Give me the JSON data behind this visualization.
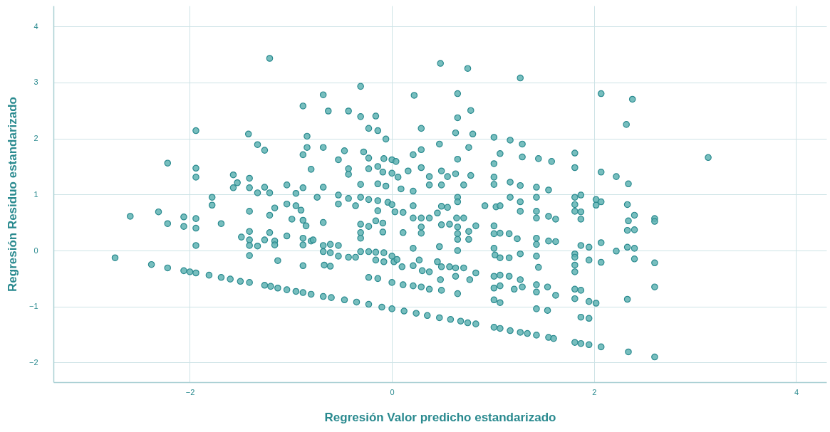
{
  "chart_data": {
    "type": "scatter",
    "xlabel": "Regresión Valor predicho estandarizado",
    "ylabel": "Regresión Residuo estandarizado",
    "color": "#5fb3b3",
    "marker": "circle",
    "grid": true,
    "xlim": [
      -3.35,
      4.3
    ],
    "ylim": [
      -2.35,
      4.37
    ],
    "xticks": [
      -2,
      0,
      2,
      4
    ],
    "yticks": [
      -2,
      -1,
      0,
      1,
      2,
      3,
      4
    ],
    "x": [
      -1.21,
      -1.94,
      -1.42,
      -1.33,
      -1.26,
      -0.88,
      -0.84,
      -0.84,
      -0.88,
      -2.22,
      -1.94,
      -1.94,
      -1.57,
      -1.53,
      -1.41,
      -1.41,
      -1.57,
      -1.33,
      -1.26,
      -1.21,
      -1.04,
      -0.8,
      -0.95,
      -0.88,
      -1.78,
      -1.78,
      -2.59,
      -2.31,
      -2.22,
      -2.06,
      -2.06,
      -1.94,
      -1.94,
      -1.69,
      -1.41,
      -1.16,
      -1.21,
      -1.04,
      -0.95,
      -0.9,
      -0.99,
      -0.88,
      -0.85,
      -1.94,
      -1.49,
      -1.41,
      -1.41,
      -1.41,
      -1.33,
      -1.26,
      -1.21,
      -1.16,
      -1.16,
      -1.04,
      -0.88,
      -0.88,
      -0.8,
      -1.41,
      -1.13,
      -0.88,
      -2.74,
      0.48,
      0.75,
      1.27,
      -0.31,
      -0.68,
      0.22,
      0.65,
      -0.63,
      -0.43,
      -0.31,
      -0.16,
      0.65,
      0.78,
      -0.23,
      -0.14,
      0.29,
      -0.06,
      0.63,
      0.8,
      0.47,
      1.01,
      1.17,
      1.29,
      -0.68,
      -0.47,
      -0.28,
      -0.53,
      -0.23,
      -0.08,
      0.0,
      0.04,
      0.21,
      0.29,
      0.65,
      0.76,
      1.01,
      1.07,
      1.29,
      -0.43,
      -0.43,
      -0.23,
      -0.14,
      -0.09,
      0.0,
      0.06,
      -0.31,
      -0.14,
      -0.06,
      0.09,
      0.16,
      0.29,
      0.37,
      0.37,
      0.49,
      0.55,
      0.63,
      0.71,
      0.78,
      1.01,
      1.01,
      1.17,
      1.27,
      0.21,
      0.49,
      -0.68,
      -0.74,
      -0.53,
      -0.53,
      -0.43,
      -0.36,
      -0.31,
      -0.23,
      -0.14,
      -0.04,
      0.0,
      0.03,
      0.11,
      -0.14,
      -0.16,
      -0.09,
      -0.09,
      -0.68,
      -0.31,
      -0.23,
      -0.31,
      -0.31,
      0.11,
      0.21,
      0.21,
      0.29,
      0.29,
      0.29,
      0.37,
      0.45,
      0.49,
      0.55,
      0.57,
      0.64,
      0.65,
      0.65,
      0.65,
      0.71,
      0.76,
      0.76,
      0.83,
      0.92,
      1.03,
      1.07,
      1.01,
      1.01,
      1.07,
      1.16,
      1.24,
      1.27,
      1.27,
      1.17,
      0.65,
      0.65,
      0.49,
      -0.78,
      -0.68,
      -0.61,
      -0.53,
      -0.68,
      -0.61,
      -0.53,
      -0.43,
      -0.36,
      -0.31,
      -0.23,
      -0.16,
      -0.16,
      -0.08,
      -0.08,
      0.0,
      0.02,
      0.05,
      0.1,
      0.21,
      0.27,
      0.3,
      0.37,
      0.45,
      0.49,
      0.57,
      0.63,
      0.63,
      0.71,
      0.77,
      0.83,
      0.48,
      0.49,
      0.65,
      -0.67,
      -0.61,
      -0.23,
      -0.14,
      0.0,
      0.11,
      0.21,
      0.29,
      0.37,
      0.21,
      0.47,
      0.65,
      1.01,
      1.02,
      1.07,
      1.16,
      1.27,
      1.01,
      1.07,
      1.16,
      1.27,
      1.01,
      1.07,
      1.21,
      1.29,
      1.01,
      1.07,
      2.07,
      2.38,
      2.32,
      3.13,
      1.45,
      1.58,
      1.81,
      1.81,
      2.07,
      2.22,
      2.34,
      1.43,
      1.55,
      1.43,
      1.81,
      1.87,
      2.02,
      2.07,
      1.81,
      1.81,
      1.87,
      1.87,
      2.02,
      2.33,
      2.4,
      2.34,
      2.33,
      2.4,
      2.6,
      2.6,
      1.43,
      1.43,
      1.55,
      1.62,
      1.43,
      1.43,
      1.55,
      1.62,
      1.87,
      1.95,
      2.07,
      2.33,
      2.4,
      2.22,
      1.81,
      1.81,
      1.81,
      1.81,
      1.43,
      1.45,
      1.95,
      2.07,
      2.4,
      2.6,
      1.43,
      1.43,
      1.54,
      1.62,
      1.81,
      1.87,
      1.81,
      1.95,
      2.02,
      2.33,
      2.6,
      1.43,
      1.54,
      1.87,
      1.95,
      -2.38,
      -2.22,
      -2.06,
      -2.0,
      -1.94,
      -1.81,
      -1.69,
      -1.6,
      -1.5,
      -1.41,
      -1.26,
      -1.2,
      -1.13,
      -1.04,
      -0.95,
      -0.88,
      -0.8,
      -0.68,
      -0.6,
      -0.47,
      -0.35,
      -0.23,
      -0.1,
      0.0,
      0.12,
      0.24,
      0.35,
      0.47,
      0.58,
      0.68,
      0.75,
      0.83,
      1.01,
      1.07,
      1.17,
      1.27,
      1.34,
      1.43,
      1.55,
      1.6,
      1.81,
      1.87,
      1.95,
      2.07,
      2.34,
      2.6
    ],
    "values": [
      3.43,
      2.14,
      2.08,
      1.89,
      1.79,
      2.58,
      2.04,
      1.84,
      1.71,
      1.56,
      1.47,
      1.31,
      1.35,
      1.21,
      1.29,
      1.12,
      1.12,
      1.03,
      1.13,
      1.03,
      1.17,
      1.45,
      1.02,
      1.12,
      0.95,
      0.81,
      0.61,
      0.69,
      0.48,
      0.6,
      0.43,
      0.57,
      0.4,
      0.48,
      0.7,
      0.76,
      0.63,
      0.83,
      0.8,
      0.72,
      0.56,
      0.54,
      0.44,
      0.09,
      0.24,
      0.34,
      0.19,
      0.09,
      0.08,
      0.19,
      0.32,
      0.17,
      0.1,
      0.26,
      0.22,
      0.1,
      0.17,
      -0.09,
      -0.18,
      -0.27,
      -0.13,
      3.34,
      3.25,
      3.08,
      2.93,
      2.78,
      2.77,
      2.8,
      2.49,
      2.49,
      2.39,
      2.4,
      2.37,
      2.5,
      2.18,
      2.14,
      2.18,
      1.99,
      2.1,
      2.08,
      1.9,
      2.02,
      1.97,
      1.9,
      1.84,
      1.78,
      1.76,
      1.62,
      1.65,
      1.64,
      1.62,
      1.59,
      1.71,
      1.8,
      1.63,
      1.84,
      1.55,
      1.73,
      1.67,
      1.46,
      1.36,
      1.46,
      1.5,
      1.4,
      1.38,
      1.31,
      1.18,
      1.19,
      1.15,
      1.1,
      1.42,
      1.48,
      1.32,
      1.17,
      1.42,
      1.32,
      1.37,
      1.17,
      1.34,
      1.31,
      1.18,
      1.22,
      1.16,
      1.06,
      1.17,
      1.13,
      0.95,
      0.99,
      0.83,
      0.93,
      0.8,
      0.95,
      0.91,
      0.89,
      0.86,
      0.82,
      0.69,
      0.68,
      0.71,
      0.53,
      0.49,
      0.33,
      0.5,
      0.47,
      0.43,
      0.32,
      0.22,
      0.32,
      0.8,
      0.58,
      0.58,
      0.42,
      0.31,
      0.58,
      0.67,
      0.46,
      0.77,
      0.47,
      0.58,
      0.42,
      0.3,
      0.2,
      0.58,
      0.34,
      0.2,
      0.44,
      0.8,
      0.78,
      0.8,
      0.44,
      0.3,
      0.31,
      0.3,
      0.21,
      0.7,
      0.87,
      0.95,
      0.95,
      0.87,
      0.79,
      0.19,
      0.09,
      0.11,
      0.09,
      -0.02,
      -0.04,
      -0.1,
      -0.12,
      -0.12,
      -0.02,
      -0.02,
      -0.03,
      -0.17,
      -0.04,
      -0.2,
      -0.1,
      -0.2,
      -0.16,
      -0.29,
      -0.27,
      -0.17,
      -0.36,
      -0.38,
      -0.2,
      -0.29,
      -0.29,
      -0.31,
      -0.46,
      -0.31,
      -0.52,
      -0.4,
      -0.52,
      -0.71,
      -0.77,
      -0.26,
      -0.28,
      -0.48,
      -0.5,
      -0.57,
      -0.61,
      -0.63,
      -0.65,
      -0.69,
      0.04,
      0.07,
      0.0,
      0.04,
      -0.08,
      -0.13,
      -0.13,
      -0.06,
      -0.46,
      -0.44,
      -0.46,
      -0.52,
      -0.67,
      -0.63,
      -0.69,
      -0.65,
      -0.88,
      -0.93,
      2.8,
      2.7,
      2.25,
      1.66,
      1.64,
      1.59,
      1.74,
      1.48,
      1.4,
      1.32,
      1.19,
      1.13,
      1.08,
      0.95,
      0.95,
      0.99,
      0.91,
      0.87,
      0.82,
      0.7,
      0.69,
      0.56,
      0.81,
      0.82,
      0.63,
      0.53,
      0.36,
      0.37,
      0.57,
      0.52,
      0.7,
      0.58,
      0.61,
      0.56,
      0.22,
      0.11,
      0.17,
      0.16,
      0.09,
      0.06,
      0.14,
      0.06,
      0.04,
      -0.01,
      -0.06,
      -0.12,
      -0.26,
      -0.38,
      -0.1,
      -0.3,
      -0.17,
      -0.21,
      -0.15,
      -0.22,
      -0.61,
      -0.74,
      -0.65,
      -0.8,
      -0.69,
      -0.71,
      -0.86,
      -0.91,
      -0.94,
      -0.87,
      -0.65,
      -1.04,
      -1.07,
      -1.19,
      -1.21,
      -0.25,
      -0.31,
      -0.36,
      -0.38,
      -0.4,
      -0.44,
      -0.48,
      -0.51,
      -0.55,
      -0.57,
      -0.62,
      -0.64,
      -0.67,
      -0.7,
      -0.73,
      -0.75,
      -0.78,
      -0.82,
      -0.84,
      -0.88,
      -0.92,
      -0.96,
      -1.01,
      -1.04,
      -1.08,
      -1.12,
      -1.16,
      -1.2,
      -1.23,
      -1.26,
      -1.29,
      -1.31,
      -1.37,
      -1.39,
      -1.43,
      -1.46,
      -1.48,
      -1.51,
      -1.55,
      -1.57,
      -1.64,
      -1.66,
      -1.68,
      -1.72,
      -1.81,
      -1.9
    ]
  }
}
